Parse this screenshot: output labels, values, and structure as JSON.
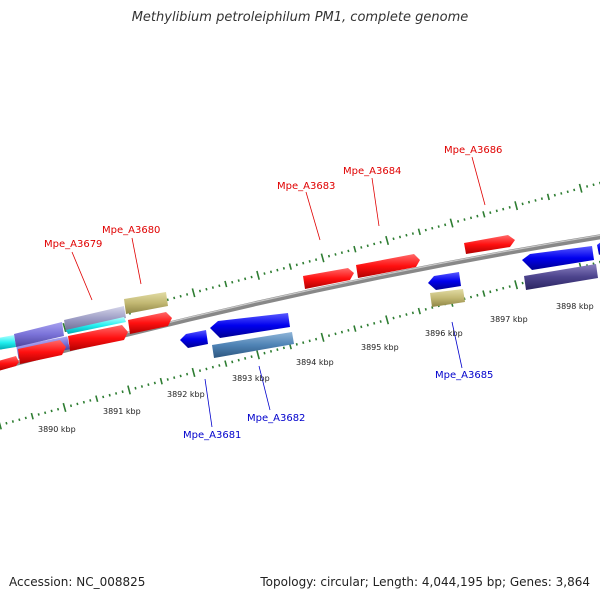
{
  "title": "Methylibium petroleiphilum PM1, complete genome",
  "accession": "Accession: NC_008825",
  "summary": "Topology: circular; Length: 4,044,195 bp; Genes: 3,864",
  "colors": {
    "forward_label": "#e00000",
    "reverse_label": "#0000cc",
    "backbone": "#8a8a8a",
    "tick": "#2e7d32"
  },
  "scale_labels": [
    "3890 kbp",
    "3891 kbp",
    "3892 kbp",
    "3893 kbp",
    "3894 kbp",
    "3895 kbp",
    "3896 kbp",
    "3897 kbp",
    "3898 kbp"
  ],
  "gene_labels": {
    "forward": [
      "Mpe_A3679",
      "Mpe_A3680",
      "Mpe_A3683",
      "Mpe_A3684",
      "Mpe_A3686"
    ],
    "reverse": [
      "Mpe_A3681",
      "Mpe_A3682",
      "Mpe_A3685"
    ]
  }
}
